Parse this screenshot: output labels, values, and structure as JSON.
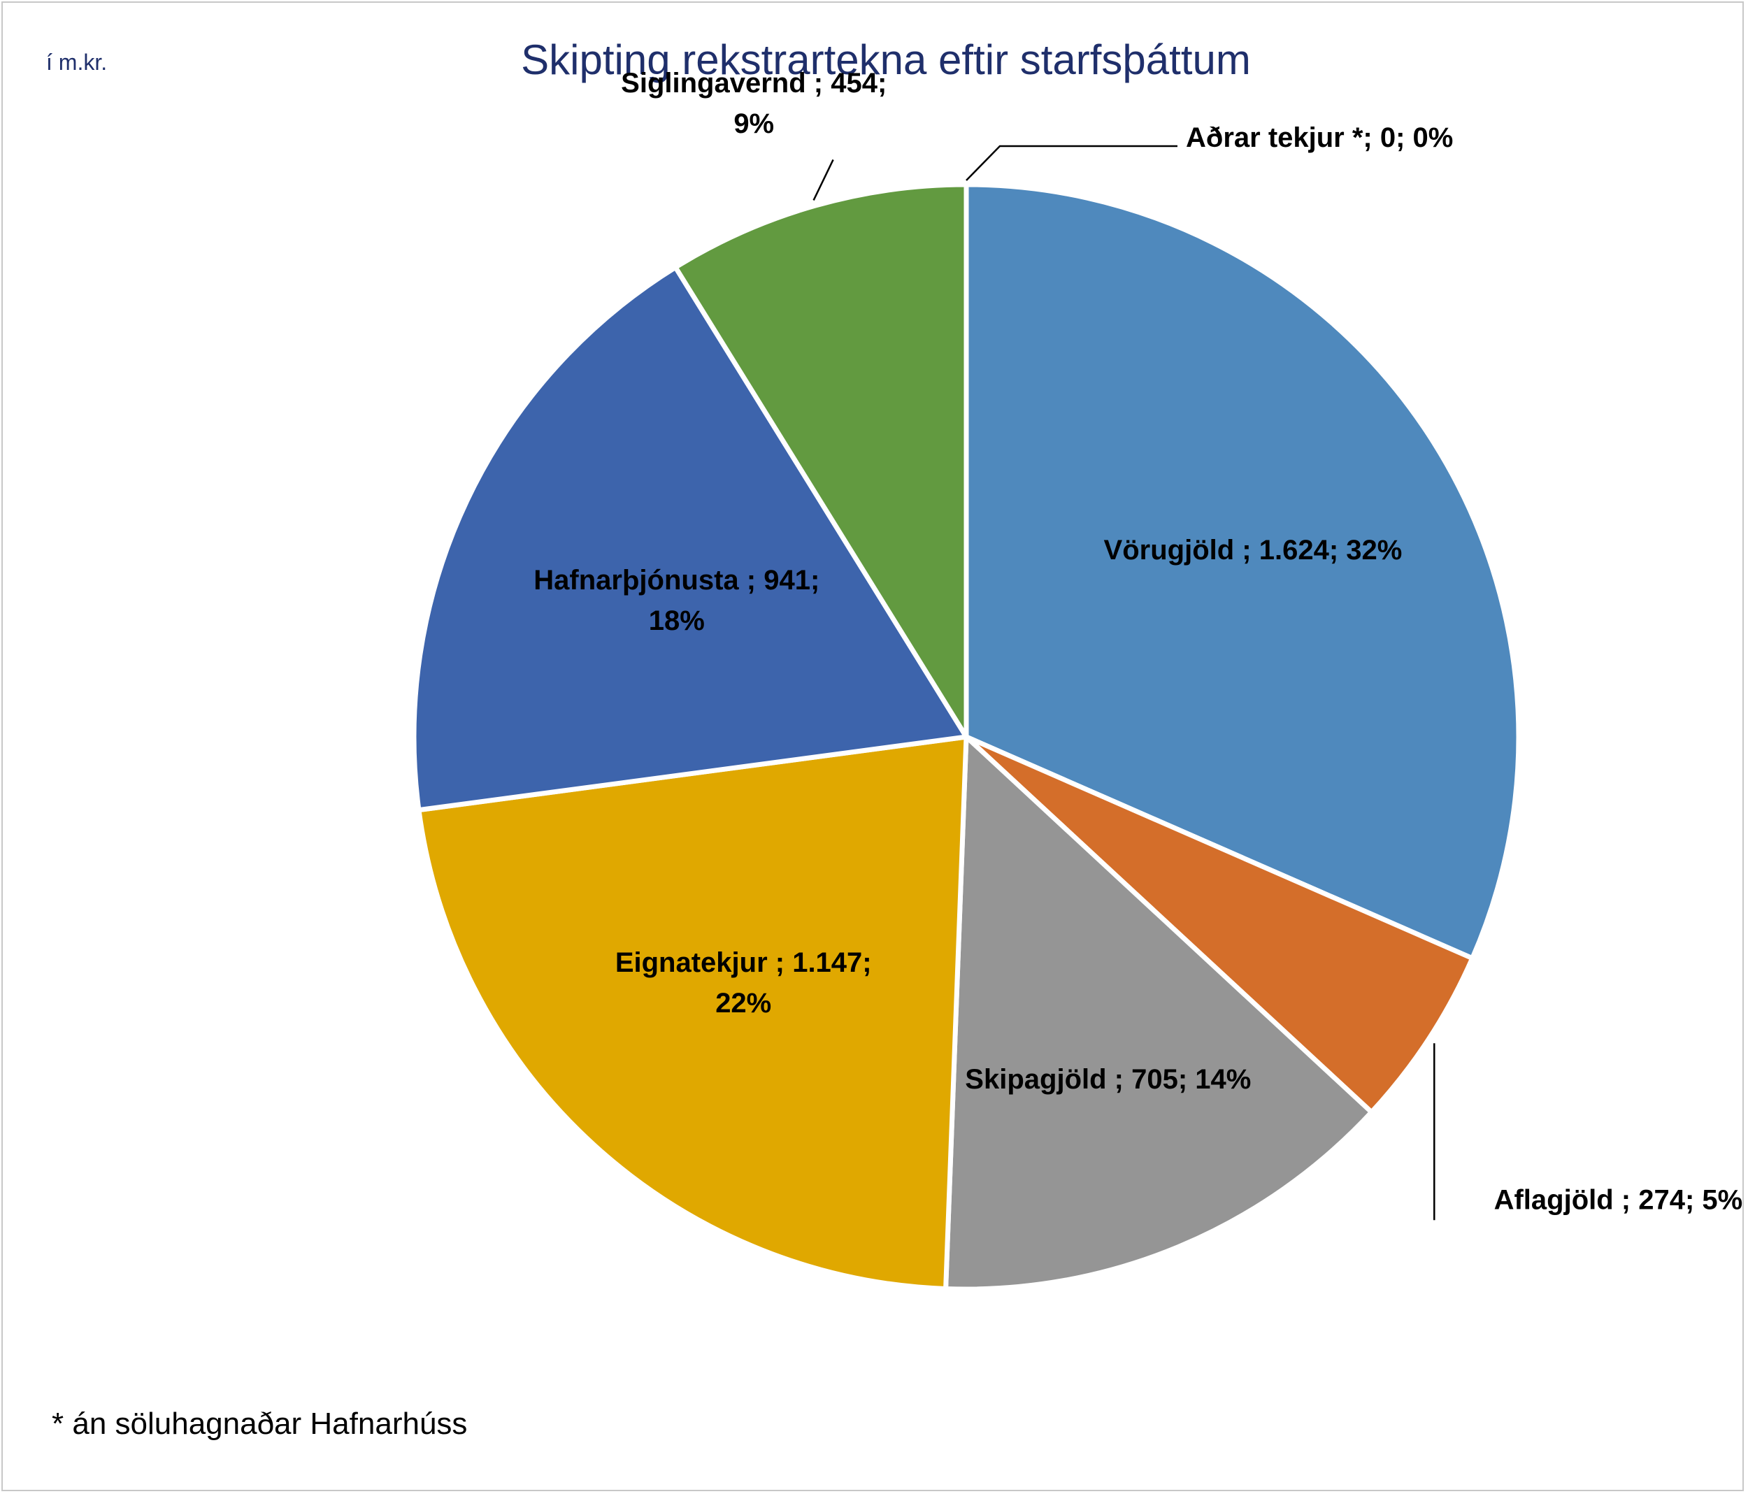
{
  "chart_data": {
    "type": "pie",
    "title": "Skipting rekstrartekna eftir starfsþáttum",
    "unit_note": "í m.kr.",
    "footnote": "* án söluhagnaðar Hafnarhúss",
    "slices": [
      {
        "name": "Vörugjöld",
        "value": 1624,
        "percent": 32,
        "label_lines": [
          "Vörugjöld ; 1.624; 32%"
        ],
        "color": "#4f89bd"
      },
      {
        "name": "Aflagjöld",
        "value": 274,
        "percent": 5,
        "label_lines": [
          "Aflagjöld ; 274; 5%"
        ],
        "color": "#d46e2a"
      },
      {
        "name": "Skipagjöld",
        "value": 705,
        "percent": 14,
        "label_lines": [
          "Skipagjöld ; 705; 14%"
        ],
        "color": "#959595"
      },
      {
        "name": "Eignatekjur",
        "value": 1147,
        "percent": 22,
        "label_lines": [
          "Eignatekjur ; 1.147;",
          "22%"
        ],
        "color": "#e0a800"
      },
      {
        "name": "Hafnarþjónusta",
        "value": 941,
        "percent": 18,
        "label_lines": [
          "Hafnarþjónusta ; 941;",
          "18%"
        ],
        "color": "#3d64ac"
      },
      {
        "name": "Siglingavernd",
        "value": 454,
        "percent": 9,
        "label_lines": [
          "Siglingavernd ; 454;",
          "9%"
        ],
        "color": "#629a40"
      },
      {
        "name": "Aðrar tekjur *",
        "value": 0,
        "percent": 0,
        "label_lines": [
          "Aðrar tekjur *; 0; 0%"
        ],
        "color": "#8e6fb0"
      }
    ]
  }
}
